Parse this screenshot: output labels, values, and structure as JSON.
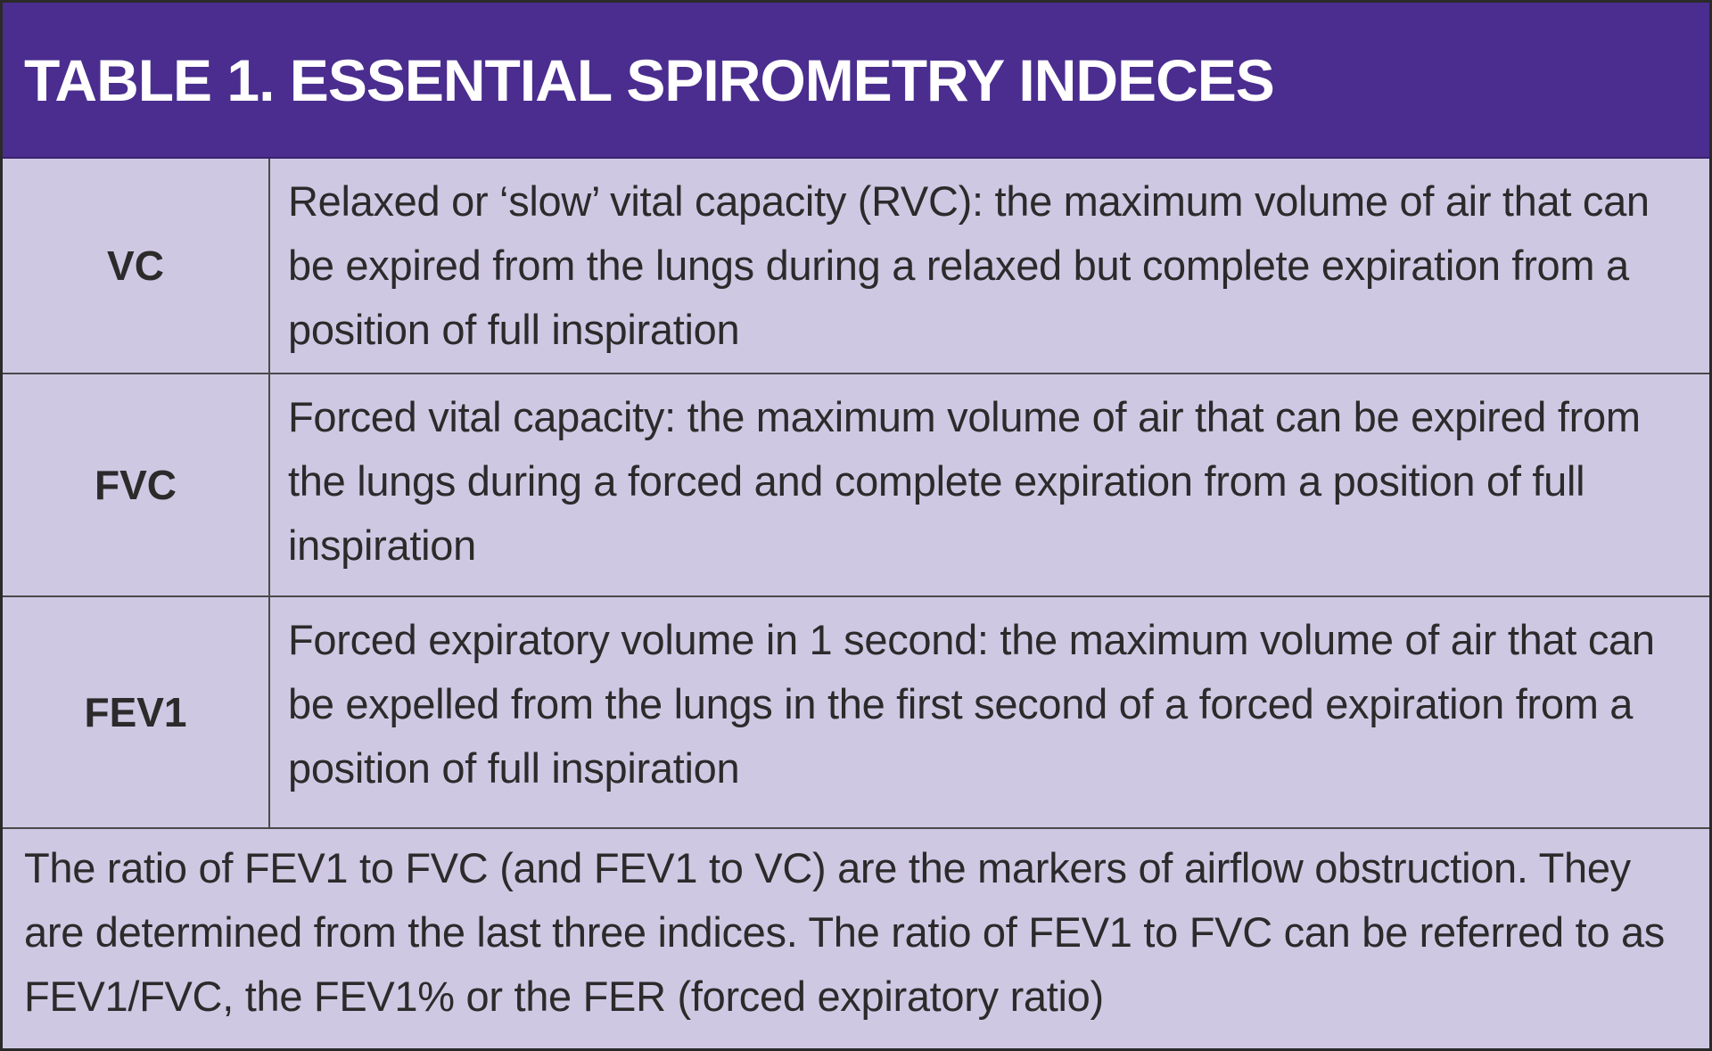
{
  "title": "TABLE 1. ESSENTIAL SPIROMETRY INDECES",
  "rows": [
    {
      "term": "VC",
      "definition": "Relaxed or ‘slow’ vital capacity (RVC): the maximum volume of air that can be expired from the lungs during a relaxed but complete expiration from a position of full inspiration"
    },
    {
      "term": "FVC",
      "definition": "Forced vital capacity: the maximum volume of air that can be expired from the lungs during a forced and complete expiration from a position of full inspiration"
    },
    {
      "term": "FEV1",
      "definition": "Forced expiratory volume in 1 second: the maximum volume of air that can be expelled from the lungs in the first second of a forced expiration from a position of full inspiration"
    }
  ],
  "note": "The ratio of FEV1 to FVC (and FEV1 to VC) are the markers of airflow obstruction. They are determined from the last three indices. The ratio of FEV1 to FVC can be referred to as FEV1/FVC, the FEV1% or the FER (forced expiratory ratio)",
  "colors": {
    "header_background": "#4a2d8f",
    "body_background": "#cfc8e3",
    "header_text": "#ffffff",
    "body_text": "#2b2b2b"
  }
}
